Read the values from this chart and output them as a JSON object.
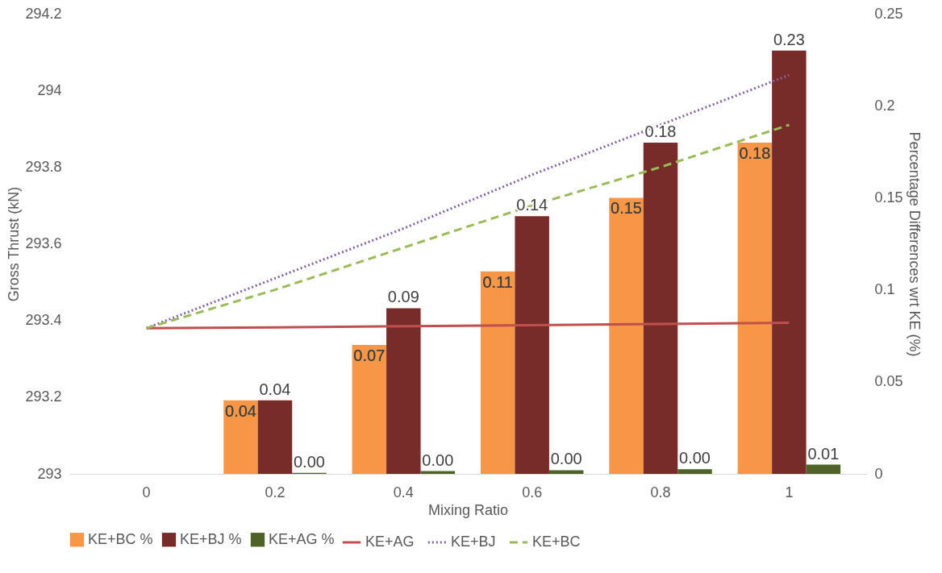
{
  "chart_data": {
    "type": "bar",
    "xlabel": "Mixing Ratio",
    "ylabel": "Gross Thrust (kN)",
    "y2label": "Percentage Differences wrt KE (%)",
    "categories": [
      "0",
      "0.2",
      "0.4",
      "0.6",
      "0.8",
      "1"
    ],
    "series": [
      {
        "name": "KE+BC %",
        "axis": "y2",
        "color": "#f79646",
        "values": [
          null,
          0.04,
          0.07,
          0.11,
          0.15,
          0.18
        ],
        "value_labels": [
          null,
          "0.04",
          "0.07",
          "0.11",
          "0.15",
          "0.18"
        ]
      },
      {
        "name": "KE+BJ %",
        "axis": "y2",
        "color": "#772c2a",
        "values": [
          null,
          0.04,
          0.09,
          0.14,
          0.18,
          0.23
        ],
        "value_labels": [
          null,
          "0.04",
          "0.09",
          "0.14",
          "0.18",
          "0.23"
        ]
      },
      {
        "name": "KE+AG %",
        "axis": "y2",
        "color": "#4f6228",
        "values": [
          null,
          0.0005,
          0.0015,
          0.002,
          0.0025,
          0.005
        ],
        "value_labels": [
          null,
          "0.00",
          "0.00",
          "0.00",
          "0.00",
          "0.01"
        ]
      },
      {
        "name": "KE+AG",
        "type": "line",
        "color": "#c0504d",
        "line_style": "solid",
        "values": [
          293.38,
          293.382,
          293.385,
          293.388,
          293.391,
          293.394
        ]
      },
      {
        "name": "KE+BJ",
        "type": "line",
        "color": "#8064a2",
        "line_style": "dotted",
        "values": [
          293.38,
          293.51,
          293.64,
          293.78,
          293.91,
          294.04
        ]
      },
      {
        "name": "KE+BC",
        "type": "line",
        "color": "#9bbb59",
        "line_style": "dashed",
        "values": [
          293.38,
          293.48,
          293.59,
          293.7,
          293.8,
          293.91
        ]
      }
    ],
    "ylim": [
      293,
      294.2
    ],
    "yticks": [
      293,
      293.2,
      293.4,
      293.6,
      293.8,
      294,
      294.2
    ],
    "y2lim": [
      0,
      0.25
    ],
    "y2ticks": [
      0,
      0.05,
      0.1,
      0.15,
      0.2,
      0.25
    ],
    "grid": false,
    "legend": "bottom",
    "marker": "none"
  }
}
